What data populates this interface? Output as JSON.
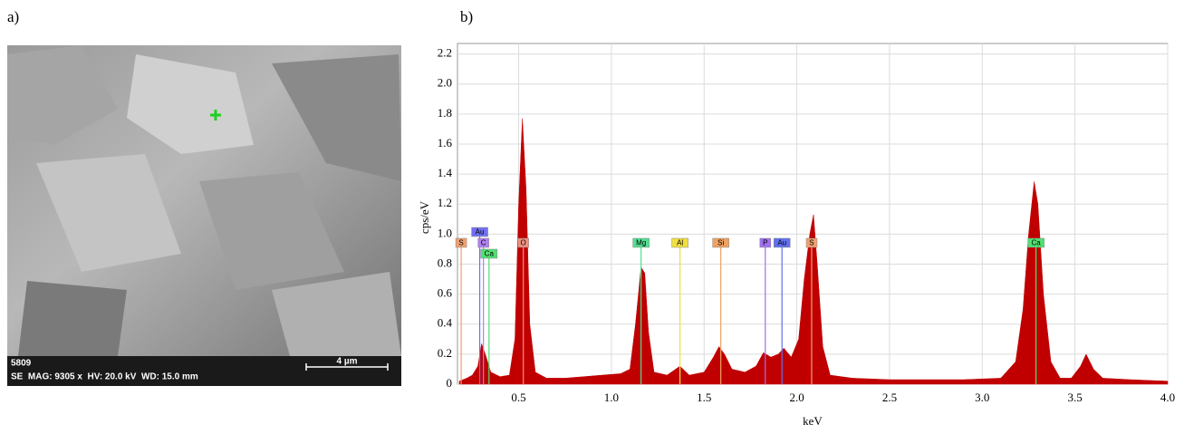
{
  "panel_labels": [
    "a)",
    "b)"
  ],
  "sem_image": {
    "image_id": "5809",
    "info": "SE  MAG: 9305 x  HV: 20.0 kV  WD: 15.0 mm",
    "scale_bar": "4 µm"
  },
  "chart_data": {
    "type": "area",
    "x_label": "keV",
    "y_label": "cps/eV",
    "xlim": [
      0.17,
      4.0
    ],
    "ylim": [
      0,
      2.27
    ],
    "xticks": [
      0.5,
      {
        "value": 1,
        "label": "1.0"
      },
      1.5,
      {
        "value": 2,
        "label": "2.0"
      },
      2.5,
      {
        "value": 3,
        "label": "3.0"
      },
      3.5,
      {
        "value": 4,
        "label": "4.0"
      }
    ],
    "yticks": [
      0,
      0.2,
      0.4,
      0.6,
      0.8,
      {
        "value": 1,
        "label": "1.0"
      },
      1.2,
      1.4,
      1.6,
      1.8,
      {
        "value": 2,
        "label": "2.0"
      },
      2.2
    ],
    "grid": true,
    "x": [
      0.18,
      0.22,
      0.25,
      0.28,
      0.3,
      0.32,
      0.35,
      0.4,
      0.45,
      0.48,
      0.5,
      0.52,
      0.54,
      0.56,
      0.59,
      0.65,
      0.75,
      0.85,
      0.95,
      1.05,
      1.1,
      1.13,
      1.16,
      1.18,
      1.2,
      1.23,
      1.3,
      1.37,
      1.42,
      1.5,
      1.55,
      1.58,
      1.61,
      1.65,
      1.72,
      1.78,
      1.82,
      1.86,
      1.9,
      1.93,
      1.97,
      2.01,
      2.04,
      2.07,
      2.09,
      2.11,
      2.14,
      2.18,
      2.3,
      2.5,
      2.7,
      2.9,
      3.1,
      3.18,
      3.22,
      3.25,
      3.28,
      3.3,
      3.33,
      3.37,
      3.42,
      3.48,
      3.53,
      3.56,
      3.6,
      3.65,
      3.8,
      4.0
    ],
    "series": [
      {
        "color": "#c00000",
        "values": [
          0.02,
          0.04,
          0.06,
          0.12,
          0.27,
          0.2,
          0.08,
          0.05,
          0.06,
          0.3,
          1.2,
          1.77,
          1.3,
          0.4,
          0.08,
          0.04,
          0.04,
          0.05,
          0.06,
          0.07,
          0.1,
          0.4,
          0.78,
          0.74,
          0.35,
          0.08,
          0.06,
          0.12,
          0.06,
          0.08,
          0.18,
          0.25,
          0.2,
          0.1,
          0.08,
          0.12,
          0.21,
          0.18,
          0.2,
          0.24,
          0.18,
          0.3,
          0.7,
          1.0,
          1.13,
          0.8,
          0.25,
          0.06,
          0.04,
          0.03,
          0.03,
          0.03,
          0.04,
          0.15,
          0.5,
          1.0,
          1.35,
          1.2,
          0.6,
          0.15,
          0.04,
          0.04,
          0.12,
          0.2,
          0.1,
          0.04,
          0.03,
          0.02
        ]
      }
    ],
    "element_markers": [
      {
        "label": "S",
        "x": 0.19,
        "color": "#f0a070"
      },
      {
        "label": "Au",
        "x": 0.29,
        "color": "#7070f0"
      },
      {
        "label": "C",
        "x": 0.31,
        "color": "#b080f0"
      },
      {
        "label": "Ca",
        "x": 0.34,
        "color": "#50e070"
      },
      {
        "label": "O",
        "x": 0.525,
        "color": "#f09080"
      },
      {
        "label": "Mg",
        "x": 1.16,
        "color": "#50e090"
      },
      {
        "label": "Al",
        "x": 1.37,
        "color": "#f0e040"
      },
      {
        "label": "Si",
        "x": 1.59,
        "color": "#f0a060"
      },
      {
        "label": "P",
        "x": 1.83,
        "color": "#a070f0"
      },
      {
        "label": "Au",
        "x": 1.92,
        "color": "#6070f0"
      },
      {
        "label": "S",
        "x": 2.08,
        "color": "#f0a070"
      },
      {
        "label": "Ca",
        "x": 3.29,
        "color": "#50e070"
      }
    ]
  }
}
